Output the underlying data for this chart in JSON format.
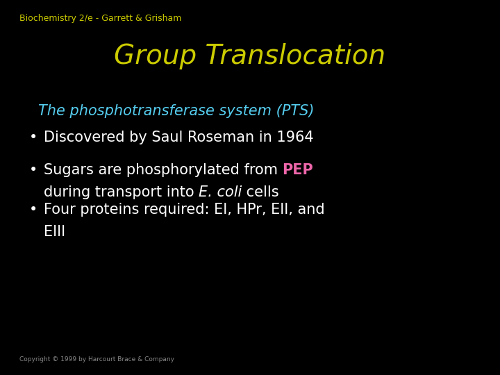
{
  "background_color": "#000000",
  "header_text": "Biochemistry 2/e - Garrett & Grisham",
  "header_color": "#cccc00",
  "header_fontsize": 9,
  "title_text": "Group Translocation",
  "title_color": "#cccc00",
  "title_fontsize": 28,
  "subtitle_text": "The phosphotransferase system (PTS)",
  "subtitle_color": "#55ccee",
  "subtitle_fontsize": 15,
  "bullet_color": "#ffffff",
  "bullet_fontsize": 15,
  "PEP_color": "#ee66aa",
  "copyright_text": "Copyright © 1999 by Harcourt Brace & Company",
  "copyright_color": "#888888",
  "copyright_fontsize": 6.5
}
